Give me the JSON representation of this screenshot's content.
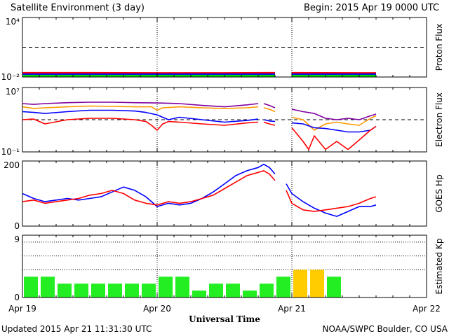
{
  "header": {
    "title": "Satellite Environment (3 day)",
    "begin": "Begin:  2015 Apr 19 0000 UTC"
  },
  "footer": {
    "updated": "Updated 2015 Apr 21 11:31:30 UTC",
    "credit": "NOAA/SWPC Boulder, CO USA"
  },
  "xaxis": {
    "title": "Universal Time",
    "ticks": [
      "Apr 19",
      "Apr 20",
      "Apr 21",
      "Apr 22"
    ]
  },
  "chart_data": [
    {
      "type": "line",
      "panel": "proton",
      "ylabel": "Proton Flux",
      "ytick_labels": [
        "10⁴",
        "10⁻²"
      ],
      "ylim": [
        0.01,
        10000
      ],
      "yscale": "log",
      "xlim_hours": [
        0,
        72
      ],
      "threshold": 10,
      "series": [
        {
          "color": "#ff0000",
          "hours": [
            0,
            12,
            24,
            36,
            45,
            46,
            48,
            60,
            63
          ],
          "values": [
            0.025,
            0.025,
            0.024,
            0.024,
            0.025,
            null,
            0.025,
            0.024,
            0.024
          ]
        },
        {
          "color": "#0000ff",
          "hours": [
            0,
            12,
            24,
            36,
            45,
            46,
            48,
            60,
            63
          ],
          "values": [
            0.018,
            0.018,
            0.018,
            0.018,
            0.018,
            null,
            0.018,
            0.018,
            0.018
          ]
        },
        {
          "color": "#00dd00",
          "hours": [
            0,
            12,
            24,
            36,
            45,
            46,
            48,
            60,
            63
          ],
          "values": [
            0.013,
            0.013,
            0.013,
            0.013,
            0.013,
            null,
            0.013,
            0.013,
            0.013
          ]
        }
      ]
    },
    {
      "type": "line",
      "panel": "electron",
      "ylabel": "Electron Flux",
      "ytick_labels": [
        "10⁷",
        "10⁻¹"
      ],
      "ylim": [
        0.1,
        10000000
      ],
      "yscale": "log",
      "xlim_hours": [
        0,
        72
      ],
      "threshold": 1000,
      "series": [
        {
          "color": "#8000a0",
          "hours": [
            0,
            2,
            4,
            8,
            12,
            16,
            20,
            24,
            28,
            32,
            36,
            40,
            42,
            42.5,
            43,
            44,
            45,
            46,
            48,
            50,
            52,
            54,
            56,
            58,
            60,
            62,
            63
          ],
          "values": [
            100000,
            80000,
            100000,
            130000,
            150000,
            150000,
            130000,
            120000,
            100000,
            60000,
            40000,
            70000,
            100000,
            null,
            100000,
            60000,
            30000,
            null,
            20000,
            10000,
            6000,
            1500,
            1000,
            1500,
            1000,
            3000,
            5000
          ]
        },
        {
          "color": "#ff9900",
          "hours": [
            0,
            2,
            4,
            8,
            12,
            16,
            20,
            23,
            24,
            25,
            28,
            32,
            36,
            40,
            42,
            42.5,
            43,
            44,
            45,
            46,
            48,
            50,
            52,
            54,
            56,
            58,
            60,
            62,
            63
          ],
          "values": [
            40000,
            25000,
            30000,
            40000,
            50000,
            45000,
            40000,
            40000,
            15000,
            30000,
            40000,
            30000,
            25000,
            30000,
            40000,
            null,
            30000,
            20000,
            10000,
            null,
            2000,
            1000,
            50,
            300,
            500,
            300,
            200,
            1500,
            3000
          ]
        },
        {
          "color": "#0000ff",
          "hours": [
            0,
            2,
            4,
            8,
            12,
            16,
            20,
            22,
            24,
            26,
            28,
            32,
            36,
            40,
            42,
            42.5,
            43,
            44,
            45,
            46,
            48,
            50,
            52,
            54,
            56,
            58,
            60,
            62,
            63
          ],
          "values": [
            10000,
            8000,
            6000,
            10000,
            15000,
            15000,
            12000,
            8000,
            4000,
            1000,
            2000,
            1000,
            500,
            800,
            1200,
            null,
            1000,
            700,
            600,
            null,
            400,
            300,
            100,
            80,
            50,
            30,
            30,
            50,
            150
          ]
        },
        {
          "color": "#ff0000",
          "hours": [
            0,
            2,
            4,
            8,
            12,
            16,
            20,
            22,
            23,
            24,
            25,
            26,
            28,
            32,
            36,
            40,
            42,
            42.5,
            43,
            44,
            45,
            46,
            48,
            50,
            51,
            52,
            54,
            56,
            58,
            60,
            62,
            63
          ],
          "values": [
            1000,
            1200,
            300,
            1000,
            1500,
            1500,
            1000,
            600,
            200,
            50,
            300,
            600,
            500,
            300,
            200,
            400,
            500,
            null,
            500,
            300,
            200,
            null,
            100,
            2,
            0.2,
            10,
            0.2,
            2,
            0.2,
            3,
            50,
            150
          ]
        }
      ]
    },
    {
      "type": "line",
      "panel": "hp",
      "ylabel": "GOES Hp",
      "ytick_labels": [
        "200",
        "0"
      ],
      "ylim": [
        0,
        200
      ],
      "xlim_hours": [
        0,
        72
      ],
      "series": [
        {
          "color": "#0000ff",
          "hours": [
            0,
            2,
            4,
            6,
            8,
            10,
            12,
            14,
            16,
            18,
            20,
            22,
            24,
            26,
            28,
            30,
            32,
            34,
            36,
            38,
            40,
            42,
            43,
            44,
            45,
            46,
            47,
            48,
            50,
            52,
            54,
            56,
            58,
            60,
            62,
            63
          ],
          "values": [
            100,
            85,
            75,
            80,
            85,
            80,
            85,
            90,
            105,
            120,
            110,
            90,
            60,
            70,
            65,
            70,
            85,
            105,
            130,
            155,
            170,
            180,
            190,
            180,
            160,
            null,
            130,
            100,
            75,
            55,
            40,
            30,
            45,
            60,
            60,
            65
          ]
        },
        {
          "color": "#ff0000",
          "hours": [
            0,
            2,
            4,
            6,
            8,
            10,
            12,
            14,
            16,
            18,
            20,
            22,
            24,
            26,
            28,
            30,
            32,
            34,
            36,
            38,
            40,
            42,
            43,
            44,
            45,
            46,
            47,
            48,
            50,
            52,
            54,
            56,
            58,
            60,
            62,
            63
          ],
          "values": [
            75,
            80,
            70,
            75,
            80,
            85,
            95,
            100,
            110,
            100,
            80,
            70,
            65,
            75,
            70,
            75,
            85,
            95,
            115,
            135,
            155,
            165,
            170,
            160,
            140,
            null,
            110,
            70,
            50,
            45,
            50,
            55,
            60,
            70,
            85,
            90
          ]
        }
      ]
    },
    {
      "type": "bar",
      "panel": "kp",
      "ylabel": "Estimated Kp",
      "ytick_labels": [
        "9",
        "0"
      ],
      "ylim": [
        0,
        9
      ],
      "xlim_hours": [
        0,
        72
      ],
      "bar_width_hours": 3,
      "bar_start_hours": [
        0,
        3,
        6,
        9,
        12,
        15,
        18,
        21,
        24,
        27,
        30,
        33,
        36,
        39,
        42,
        45,
        48,
        51,
        54
      ],
      "values": [
        3,
        3,
        2,
        2,
        2,
        2,
        2,
        2,
        3,
        3,
        1,
        2,
        2,
        1,
        2,
        3,
        4,
        4,
        3
      ],
      "colors": [
        "#22ee22",
        "#22ee22",
        "#22ee22",
        "#22ee22",
        "#22ee22",
        "#22ee22",
        "#22ee22",
        "#22ee22",
        "#22ee22",
        "#22ee22",
        "#22ee22",
        "#22ee22",
        "#22ee22",
        "#22ee22",
        "#22ee22",
        "#22ee22",
        "#ffcc00",
        "#ffcc00",
        "#22ee22"
      ],
      "dotted_levels": [
        4,
        6,
        8
      ]
    }
  ]
}
